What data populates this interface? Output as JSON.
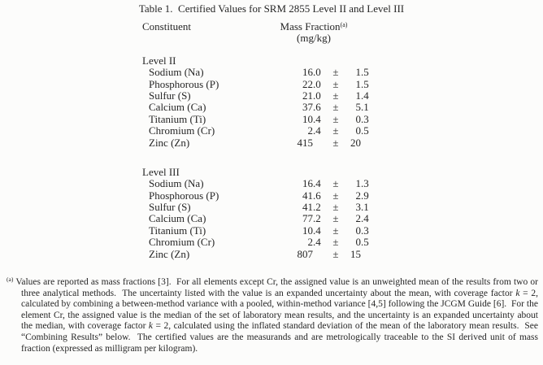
{
  "page": {
    "title": "Table 1.  Certified Values for SRM 2855 Level II and Level III"
  },
  "table": {
    "header": {
      "constituent": "Constituent",
      "mass_fraction": "Mass Fraction",
      "mass_fraction_sup": "(a)",
      "unit": "(mg/kg)"
    },
    "pm": "±",
    "levels": [
      {
        "label": "Level II",
        "rows": [
          {
            "constituent": "Sodium (Na)",
            "value": "16.0",
            "uncertainty": "1.5"
          },
          {
            "constituent": "Phosphorous (P)",
            "value": "22.0",
            "uncertainty": "1.5"
          },
          {
            "constituent": "Sulfur (S)",
            "value": "21.0",
            "uncertainty": "1.4"
          },
          {
            "constituent": "Calcium (Ca)",
            "value": "37.6",
            "uncertainty": "5.1"
          },
          {
            "constituent": "Titanium (Ti)",
            "value": "10.4",
            "uncertainty": "0.3"
          },
          {
            "constituent": "Chromium (Cr)",
            "value": "2.4",
            "uncertainty": "0.5"
          },
          {
            "constituent": "Zinc (Zn)",
            "value": "415",
            "uncertainty": "20"
          }
        ]
      },
      {
        "label": "Level III",
        "rows": [
          {
            "constituent": "Sodium (Na)",
            "value": "16.4",
            "uncertainty": "1.3"
          },
          {
            "constituent": "Phosphorous (P)",
            "value": "41.6",
            "uncertainty": "2.9"
          },
          {
            "constituent": "Sulfur (S)",
            "value": "41.2",
            "uncertainty": "3.1"
          },
          {
            "constituent": "Calcium (Ca)",
            "value": "77.2",
            "uncertainty": "2.4"
          },
          {
            "constituent": "Titanium (Ti)",
            "value": "10.4",
            "uncertainty": "0.3"
          },
          {
            "constituent": "Chromium (Cr)",
            "value": "2.4",
            "uncertainty": "0.5"
          },
          {
            "constituent": "Zinc (Zn)",
            "value": "807",
            "uncertainty": "15"
          }
        ]
      }
    ]
  },
  "footnote": {
    "segments": [
      {
        "text": "(a)",
        "sup": true
      },
      {
        "text": " Values are reported as mass fractions [3].  For all elements except Cr, the assigned value is an unweighted mean of the results from two or three analytical methods.  The uncertainty listed with the value is an expanded uncertainty about the mean, with coverage factor "
      },
      {
        "text": "k",
        "italic": true
      },
      {
        "text": " = 2, calculated by combining a between-method variance with a pooled, within-method variance [4,5] following the JCGM Guide [6].  For the element Cr, the assigned value is the median of the set of laboratory mean results, and the uncertainty is an expanded uncertainty about the median, with coverage factor "
      },
      {
        "text": "k",
        "italic": true
      },
      {
        "text": " = 2, calculated using the inflated standard deviation of the mean of the laboratory mean results.  See “Combining Results” below.  The certified values are the measurands and are metrologically traceable to the SI derived unit of mass fraction (expressed as milligram per kilogram)."
      }
    ]
  },
  "colors": {
    "text": "#262626",
    "background": "#fcfcfb"
  }
}
